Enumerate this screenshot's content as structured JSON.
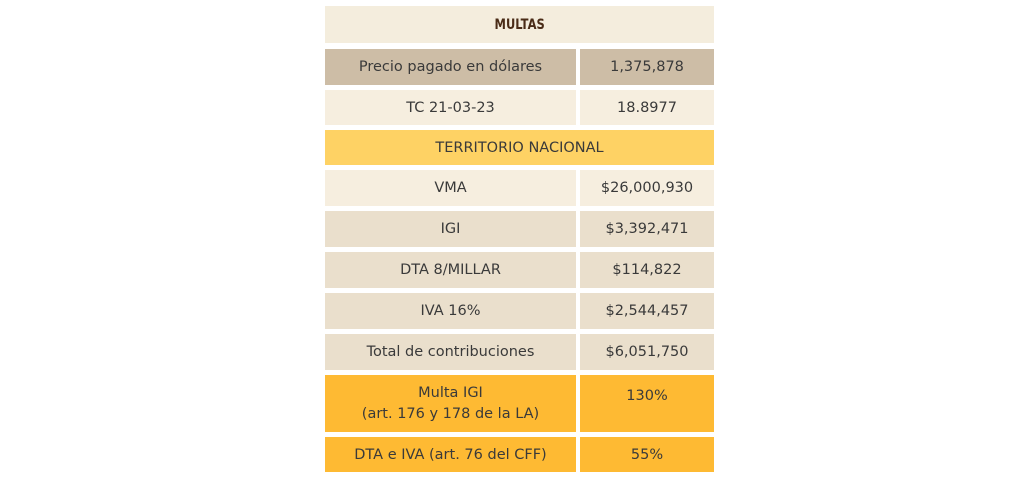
{
  "title": "MULTAS",
  "rows": {
    "precio": {
      "label": "Precio pagado en dólares",
      "value": "1,375,878"
    },
    "tc": {
      "label": "TC 21-03-23",
      "value": "18.8977"
    },
    "territorio": {
      "label": "TERRITORIO NACIONAL"
    },
    "vma": {
      "label": "VMA",
      "value": "$26,000,930"
    },
    "igi": {
      "label": "IGI",
      "value": "$3,392,471"
    },
    "dta": {
      "label": "DTA 8/MILLAR",
      "value": "$114,822"
    },
    "iva": {
      "label": "IVA 16%",
      "value": "$2,544,457"
    },
    "total": {
      "label": "Total de contribuciones",
      "value": "$6,051,750"
    },
    "multa_igi": {
      "label_line1": "Multa IGI",
      "label_line2": "(art. 176 y 178 de la LA)",
      "value": "130%"
    },
    "dta_iva": {
      "label": "DTA e IVA (art. 76 del CFF)",
      "value": "55%"
    }
  },
  "colors": {
    "header_text": "#4a2c17",
    "dark_tan": "#cdbda6",
    "light_cream": "#f6eedf",
    "tan": "#eadfcc",
    "yellow": "#fed264",
    "orange": "#feba33"
  }
}
